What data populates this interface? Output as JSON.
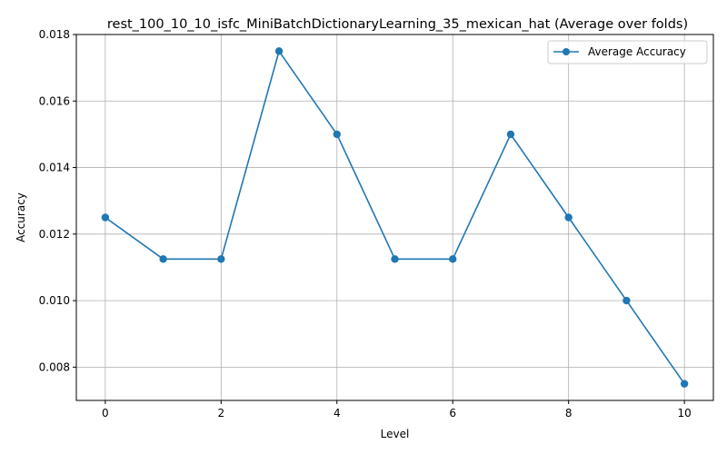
{
  "chart_data": {
    "type": "line",
    "title": "rest_100_10_10_isfc_MiniBatchDictionaryLearning_35_mexican_hat (Average over folds)",
    "xlabel": "Level",
    "ylabel": "Accuracy",
    "xlim": [
      -0.5,
      10.5
    ],
    "ylim": [
      0.007,
      0.018
    ],
    "xticks": [
      0,
      2,
      4,
      6,
      8,
      10
    ],
    "yticks": [
      0.008,
      0.01,
      0.012,
      0.014,
      0.016,
      0.018
    ],
    "ytick_labels": [
      "0.008",
      "0.010",
      "0.012",
      "0.014",
      "0.016",
      "0.018"
    ],
    "grid": true,
    "legend_position": "top-right",
    "series": [
      {
        "name": "Average Accuracy",
        "color": "#1f77b4",
        "marker": "circle",
        "x": [
          0,
          1,
          2,
          3,
          4,
          5,
          6,
          7,
          8,
          9,
          10
        ],
        "y": [
          0.0125,
          0.01125,
          0.01125,
          0.0175,
          0.015,
          0.01125,
          0.01125,
          0.015,
          0.0125,
          0.01,
          0.0075
        ]
      }
    ]
  }
}
